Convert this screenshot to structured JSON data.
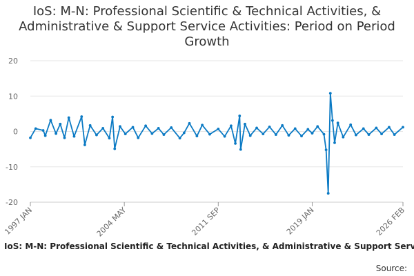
{
  "title": "IoS: M-N: Professional Scientific & Technical Activities, & Administrative & Support Service Activities: Period on Period Growth",
  "source": "Source:",
  "colors": {
    "series": "#0b7ac4",
    "grid": "#e6e6e6",
    "axis": "#666666"
  },
  "chart_data": {
    "type": "line",
    "title": "IoS: M-N: Professional Scientific & Technical Activities, & Administrative & Support Service Activities: Period on Period Growth",
    "xlabel": "",
    "ylabel": "",
    "xlim": [
      "1997-01",
      "2026-02"
    ],
    "ylim": [
      -20,
      20
    ],
    "y_ticks": [
      -20,
      -10,
      0,
      10,
      20
    ],
    "x_ticks": [
      {
        "value": "1997-01",
        "label": "1997 JAN"
      },
      {
        "value": "2004-05",
        "label": "2004 MAY"
      },
      {
        "value": "2011-09",
        "label": "2011 SEP"
      },
      {
        "value": "2019-01",
        "label": "2019 JAN"
      },
      {
        "value": "2026-02",
        "label": "2026 FEB"
      }
    ],
    "grid": true,
    "legend": "bottom",
    "series": [
      {
        "name": "IoS: M-N: Professional Scientific & Technical Activities, & Administrative & Support Service Activities: Period on Period Growth",
        "points": [
          [
            "1997-01",
            -1.8
          ],
          [
            "1997-06",
            0.8
          ],
          [
            "1998-01",
            0.3
          ],
          [
            "1998-03",
            -1.2
          ],
          [
            "1998-08",
            3.2
          ],
          [
            "1999-01",
            -0.6
          ],
          [
            "1999-05",
            2.1
          ],
          [
            "1999-09",
            -1.8
          ],
          [
            "2000-01",
            3.9
          ],
          [
            "2000-06",
            -1.4
          ],
          [
            "2001-01",
            4.2
          ],
          [
            "2001-04",
            -3.8
          ],
          [
            "2001-09",
            1.7
          ],
          [
            "2002-03",
            -1.0
          ],
          [
            "2002-09",
            0.9
          ],
          [
            "2003-03",
            -1.9
          ],
          [
            "2003-06",
            4.1
          ],
          [
            "2003-08",
            -4.9
          ],
          [
            "2004-01",
            1.4
          ],
          [
            "2004-06",
            -0.7
          ],
          [
            "2005-01",
            1.2
          ],
          [
            "2005-06",
            -1.8
          ],
          [
            "2006-01",
            1.6
          ],
          [
            "2006-07",
            -0.6
          ],
          [
            "2007-01",
            0.9
          ],
          [
            "2007-06",
            -0.9
          ],
          [
            "2008-01",
            1.1
          ],
          [
            "2008-09",
            -1.9
          ],
          [
            "2009-01",
            -0.4
          ],
          [
            "2009-06",
            2.3
          ],
          [
            "2010-01",
            -1.3
          ],
          [
            "2010-06",
            1.8
          ],
          [
            "2011-01",
            -0.8
          ],
          [
            "2011-09",
            0.7
          ],
          [
            "2012-03",
            -1.4
          ],
          [
            "2012-09",
            1.6
          ],
          [
            "2013-01",
            -3.4
          ],
          [
            "2013-05",
            4.4
          ],
          [
            "2013-06",
            -5.1
          ],
          [
            "2013-10",
            2.1
          ],
          [
            "2014-03",
            -1.2
          ],
          [
            "2014-09",
            1.0
          ],
          [
            "2015-03",
            -0.7
          ],
          [
            "2015-09",
            1.3
          ],
          [
            "2016-03",
            -0.9
          ],
          [
            "2016-09",
            1.7
          ],
          [
            "2017-03",
            -1.1
          ],
          [
            "2017-09",
            0.8
          ],
          [
            "2018-03",
            -1.3
          ],
          [
            "2018-09",
            0.6
          ],
          [
            "2019-01",
            -0.5
          ],
          [
            "2019-06",
            1.4
          ],
          [
            "2019-12",
            -0.8
          ],
          [
            "2020-02",
            -5.2
          ],
          [
            "2020-04",
            -17.5
          ],
          [
            "2020-06",
            10.8
          ],
          [
            "2020-08",
            3.1
          ],
          [
            "2020-10",
            -3.2
          ],
          [
            "2021-01",
            2.4
          ],
          [
            "2021-06",
            -1.6
          ],
          [
            "2022-01",
            1.9
          ],
          [
            "2022-06",
            -1.0
          ],
          [
            "2023-01",
            0.8
          ],
          [
            "2023-06",
            -0.9
          ],
          [
            "2024-01",
            1.0
          ],
          [
            "2024-06",
            -0.7
          ],
          [
            "2025-01",
            1.2
          ],
          [
            "2025-06",
            -0.9
          ],
          [
            "2026-02",
            1.2
          ]
        ]
      }
    ]
  }
}
